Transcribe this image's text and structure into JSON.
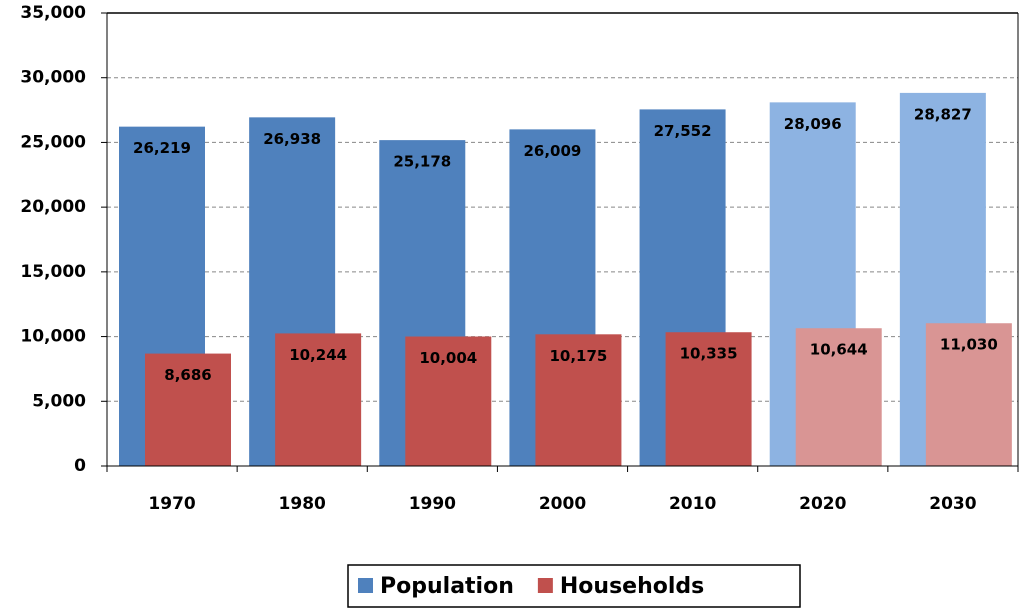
{
  "chart_data": {
    "type": "bar",
    "categories": [
      "1970",
      "1980",
      "1990",
      "2000",
      "2010",
      "2020",
      "2030"
    ],
    "series": [
      {
        "name": "Population",
        "color": "#4f81bd",
        "point_colors": [
          "#4f81bd",
          "#4f81bd",
          "#4f81bd",
          "#4f81bd",
          "#4f81bd",
          "#8db3e2",
          "#8db3e2"
        ],
        "values": [
          26219,
          26938,
          25178,
          26009,
          27552,
          28096,
          28827
        ],
        "value_labels": [
          "26,219",
          "26,938",
          "25,178",
          "26,009",
          "27,552",
          "28,096",
          "28,827"
        ]
      },
      {
        "name": "Households",
        "color": "#c0504d",
        "point_colors": [
          "#c0504d",
          "#c0504d",
          "#c0504d",
          "#c0504d",
          "#c0504d",
          "#d99594",
          "#d99594"
        ],
        "values": [
          8686,
          10244,
          10004,
          10175,
          10335,
          10644,
          11030
        ],
        "value_labels": [
          "8,686",
          "10,244",
          "10,004",
          "10,175",
          "10,335",
          "10,644",
          "11,030"
        ]
      }
    ],
    "ylim": [
      0,
      35000
    ],
    "yticks": [
      0,
      {
        "value": 5000,
        "label": "5,000"
      },
      {
        "value": 10000,
        "label": "10,000"
      },
      {
        "value": 15000,
        "label": "15,000"
      },
      {
        "value": 20000,
        "label": "20,000"
      },
      {
        "value": 25000,
        "label": "25,000"
      },
      {
        "value": 30000,
        "label": "30,000"
      },
      {
        "value": 35000,
        "label": "35,000"
      }
    ],
    "grid": true
  }
}
